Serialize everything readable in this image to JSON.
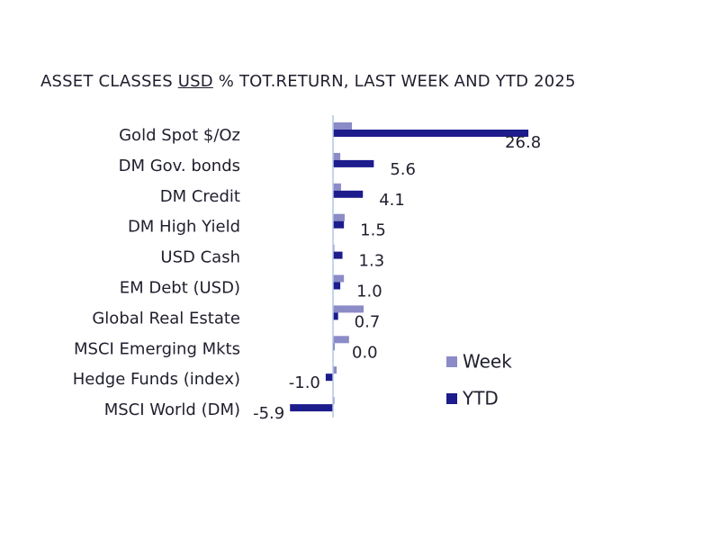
{
  "chart_data": {
    "type": "bar",
    "orientation": "horizontal",
    "title_parts": [
      "ASSET CLASSES ",
      "USD",
      " % TOT.RETURN, LAST WEEK AND YTD 2025"
    ],
    "categories": [
      "Gold Spot   $/Oz",
      "DM Gov. bonds",
      "DM Credit",
      "DM High Yield",
      "USD Cash",
      "EM Debt (USD)",
      "Global Real Estate",
      "MSCI Emerging Mkts",
      "Hedge Funds (index)",
      "MSCI World (DM)"
    ],
    "series": [
      {
        "name": "Week",
        "color": "#8b8bc8",
        "values": [
          2.6,
          1.0,
          1.1,
          1.6,
          0.1,
          1.5,
          4.2,
          2.2,
          0.5,
          0.2
        ]
      },
      {
        "name": "YTD",
        "color": "#1c1c8c",
        "values": [
          26.8,
          5.6,
          4.1,
          1.5,
          1.3,
          1.0,
          0.7,
          0.0,
          -1.0,
          -5.9
        ]
      }
    ],
    "data_labels": [
      "26.8",
      "5.6",
      "4.1",
      "1.5",
      "1.3",
      "1.0",
      "0.7",
      "0.0",
      "-1.0",
      "-5.9"
    ],
    "grid": false,
    "legend": "bottom-right"
  }
}
